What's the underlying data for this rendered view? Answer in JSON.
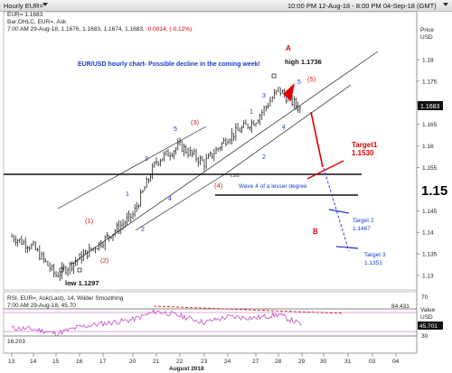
{
  "window": {
    "title": "Hourly EUR=",
    "header_time": "10:00 PM 12-Aug-18 - 8:00 PM 04-Sep-18 (GMT)"
  },
  "info": {
    "line1": "EUR= 1.1683",
    "line2": "Bar;OHLC, EUR=, Ask",
    "line3_prefix": "7:00 AM 29-Aug-18, 1.1676, 1.1683, 1.1674, 1.1683, ",
    "line3_change": "-0.0014, (-0.12%)"
  },
  "annotations": {
    "title": "EUR/USD hourly chart- Possible decline in the coming week!",
    "high_label": "high 1.1736",
    "low_label": "low 1.1297",
    "wave4_label": "Wave 4 of a lesser degree",
    "target1_label": "Target1",
    "target1_value": "1.1530",
    "target2_label": "Target 2",
    "target2_value": "1.1467",
    "target3_label": "Target 3",
    "target3_value": "1.1351",
    "wave_A": "A",
    "wave_B": "B",
    "lss": "LSS",
    "waves": {
      "p1": "(1)",
      "p2": "(2)",
      "p3": "(3)",
      "p4": "(4)",
      "p5": "(5)",
      "i1": "1",
      "i2": "2",
      "i3": "3",
      "i4": "4",
      "i5": "5",
      "j1": "1",
      "j2": "2",
      "j3": "3",
      "j4": "4",
      "j5": "5"
    }
  },
  "price_axis": {
    "title": "Price",
    "unit": "USD",
    "last_price": "1.1683",
    "big_label": "1.15"
  },
  "rsi_panel": {
    "info1": "RSI, EUR=, Ask(Last), 14, Wilder Smoothing",
    "info2": "7:00 AM 29-Aug-18, 45.70",
    "value_label": "Value",
    "unit": "USD",
    "current": "45.701",
    "upper": "84.431",
    "lower": "16.203",
    "tick_70": "70",
    "tick_30": "30"
  },
  "x_axis": {
    "month_label": "August 2018"
  },
  "colors": {
    "candles": "#000000",
    "target_line_red": "#e00000",
    "projection_blue": "#2233cc",
    "wave_blue": "#1a3cc8",
    "wave_red": "#d42020",
    "rsi_line": "#c050c0"
  },
  "chart_data": [
    {
      "type": "line",
      "title": "EUR/USD hourly chart- Possible decline in the coming week!",
      "series": [
        {
          "name": "EUR=",
          "points": [
            [
              "13",
              1.139
            ],
            [
              "14",
              1.1365
            ],
            [
              "15",
              1.13
            ],
            [
              "16",
              1.134
            ],
            [
              "17",
              1.138
            ],
            [
              "20",
              1.144
            ],
            [
              "21",
              1.1565
            ],
            [
              "22",
              1.16
            ],
            [
              "23",
              1.156
            ],
            [
              "24",
              1.162
            ],
            [
              "27",
              1.166
            ],
            [
              "28",
              1.173
            ],
            [
              "29",
              1.1683
            ]
          ]
        }
      ],
      "xticks": [
        "13",
        "14",
        "15",
        "16",
        "17",
        "20",
        "21",
        "22",
        "23",
        "24",
        "27",
        "28",
        "29",
        "30",
        "31",
        "03",
        "04"
      ],
      "yticks": [
        1.13,
        1.135,
        1.14,
        1.145,
        1.15,
        1.155,
        1.16,
        1.165,
        1.17,
        1.175,
        1.18
      ],
      "ylim": [
        1.128,
        1.183
      ],
      "levels": {
        "high": 1.1736,
        "low": 1.1297,
        "target1": 1.153,
        "target2": 1.1467,
        "target3": 1.1351
      },
      "ylabel": "Price"
    },
    {
      "type": "line",
      "title": "RSI, EUR=, Ask(Last), 14, Wilder Smoothing",
      "series": [
        {
          "name": "RSI",
          "points": [
            [
              "13",
              40
            ],
            [
              "14",
              38
            ],
            [
              "15",
              30
            ],
            [
              "16",
              42
            ],
            [
              "17",
              48
            ],
            [
              "20",
              55
            ],
            [
              "21",
              70
            ],
            [
              "22",
              62
            ],
            [
              "23",
              50
            ],
            [
              "24",
              60
            ],
            [
              "27",
              58
            ],
            [
              "28",
              64
            ],
            [
              "29",
              45.7
            ]
          ]
        }
      ],
      "yticks": [
        30,
        70
      ],
      "ylim": [
        0,
        100
      ]
    }
  ]
}
